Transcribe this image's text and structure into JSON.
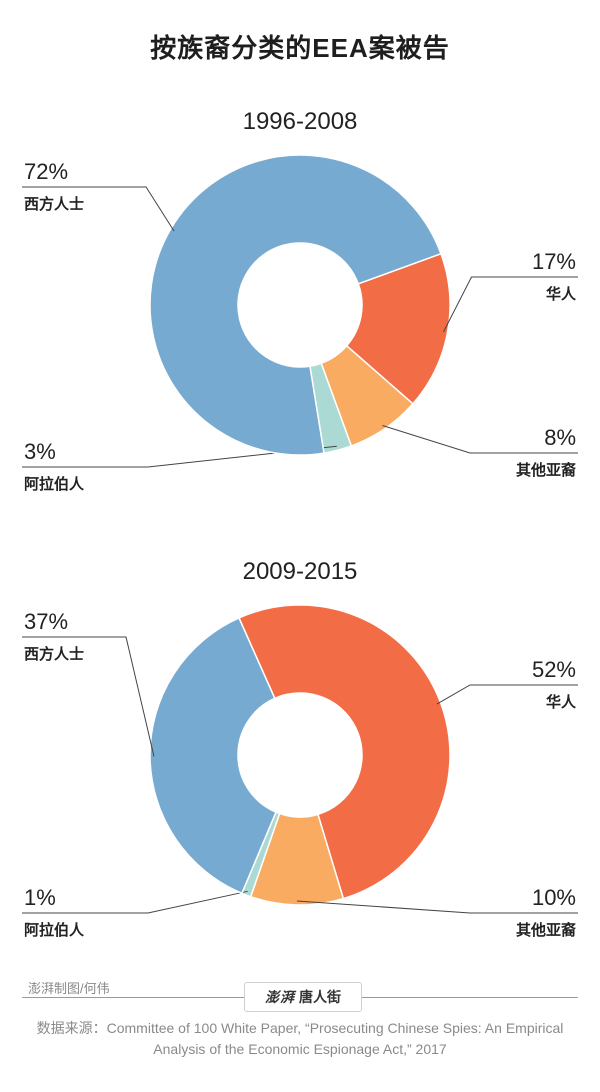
{
  "title": "按族裔分类的EEA案被告",
  "chart_data": [
    {
      "type": "pie",
      "donut": true,
      "subtitle": "1996-2008",
      "start_angle_deg": 70,
      "slices": [
        {
          "label": "华人",
          "value": 17,
          "pct_label": "17%",
          "color": "#f26c45"
        },
        {
          "label": "其他亚裔",
          "value": 8,
          "pct_label": "8%",
          "color": "#f9ab62"
        },
        {
          "label": "阿拉伯人",
          "value": 3,
          "pct_label": "3%",
          "color": "#abd9d4"
        },
        {
          "label": "西方人士",
          "value": 72,
          "pct_label": "72%",
          "color": "#77aad1"
        }
      ]
    },
    {
      "type": "pie",
      "donut": true,
      "subtitle": "2009-2015",
      "start_angle_deg": -24,
      "slices": [
        {
          "label": "华人",
          "value": 52,
          "pct_label": "52%",
          "color": "#f26c45"
        },
        {
          "label": "其他亚裔",
          "value": 10,
          "pct_label": "10%",
          "color": "#f9ab62"
        },
        {
          "label": "阿拉伯人",
          "value": 1,
          "pct_label": "1%",
          "color": "#abd9d4"
        },
        {
          "label": "西方人士",
          "value": 37,
          "pct_label": "37%",
          "color": "#77aad1"
        }
      ]
    }
  ],
  "footer": {
    "credit": "澎湃制图/何伟",
    "logo_mark": "澎湃",
    "logo_text": "唐人街",
    "source": "数据来源：Committee of 100 White Paper, “Prosecuting Chinese Spies: An Empirical Analysis of the Economic Espionage Act,” 2017"
  }
}
